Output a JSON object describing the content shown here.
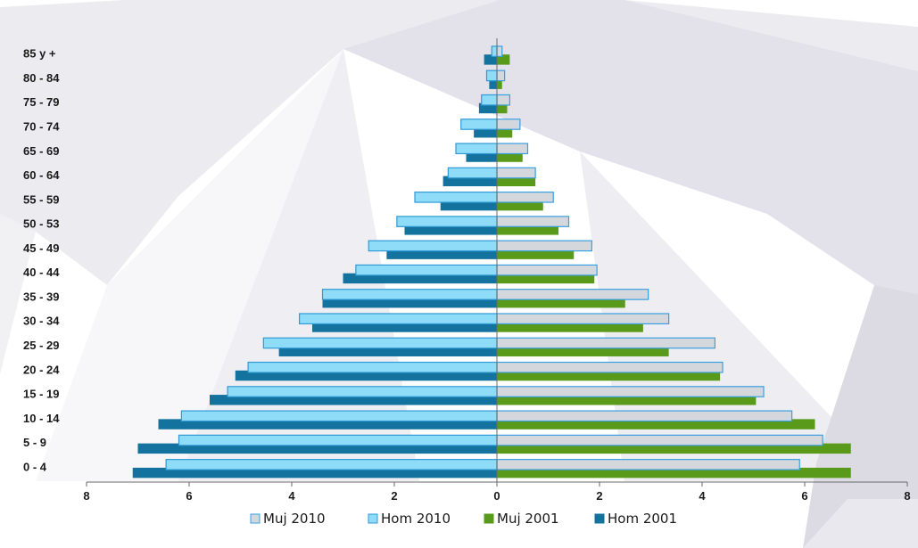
{
  "chart_data": {
    "type": "bar",
    "orientation": "horizontal",
    "chart_style": "population-pyramid",
    "title": "",
    "xlabel": "",
    "ylabel": "",
    "xlim": [
      -8,
      8
    ],
    "x_ticks": [
      -8,
      -6,
      -4,
      -2,
      0,
      2,
      4,
      6,
      8
    ],
    "x_tick_labels": [
      "8",
      "6",
      "4",
      "2",
      "0",
      "2",
      "4",
      "6",
      "8"
    ],
    "grid": false,
    "legend_position": "bottom",
    "categories": [
      "0 - 4",
      "5 - 9",
      "10 - 14",
      "15 - 19",
      "20 - 24",
      "25 - 29",
      "30 - 34",
      "35 - 39",
      "40 - 44",
      "45 - 49",
      "50 - 53",
      "55 - 59",
      "60 - 64",
      "65 - 69",
      "70 - 74",
      "75 - 79",
      "80 - 84",
      "85 y  +"
    ],
    "series": [
      {
        "name": "Muj 2010",
        "side": "right",
        "color": "#d4d8dc",
        "edge": "#3a9fe0",
        "values": [
          5.9,
          6.35,
          5.75,
          5.2,
          4.4,
          4.25,
          3.35,
          2.95,
          1.95,
          1.85,
          1.4,
          1.1,
          0.75,
          0.6,
          0.45,
          0.25,
          0.15,
          0.1
        ]
      },
      {
        "name": "Hom 2010",
        "side": "left",
        "color": "#8edcf8",
        "edge": "#2f9ad6",
        "values": [
          6.45,
          6.2,
          6.15,
          5.25,
          4.85,
          4.55,
          3.85,
          3.4,
          2.75,
          2.5,
          1.95,
          1.6,
          0.95,
          0.8,
          0.7,
          0.3,
          0.2,
          0.1
        ]
      },
      {
        "name": "Muj 2001",
        "side": "right",
        "color": "#5a9a1a",
        "values": [
          6.9,
          6.9,
          6.2,
          5.05,
          4.35,
          3.35,
          2.85,
          2.5,
          1.9,
          1.5,
          1.2,
          0.9,
          0.75,
          0.5,
          0.3,
          0.2,
          0.1,
          0.25
        ]
      },
      {
        "name": "Hom 2001",
        "side": "left",
        "color": "#14739e",
        "values": [
          7.1,
          7.0,
          6.6,
          5.6,
          5.1,
          4.25,
          3.6,
          3.4,
          3.0,
          2.15,
          1.8,
          1.1,
          1.05,
          0.6,
          0.45,
          0.35,
          0.15,
          0.25
        ]
      }
    ]
  }
}
